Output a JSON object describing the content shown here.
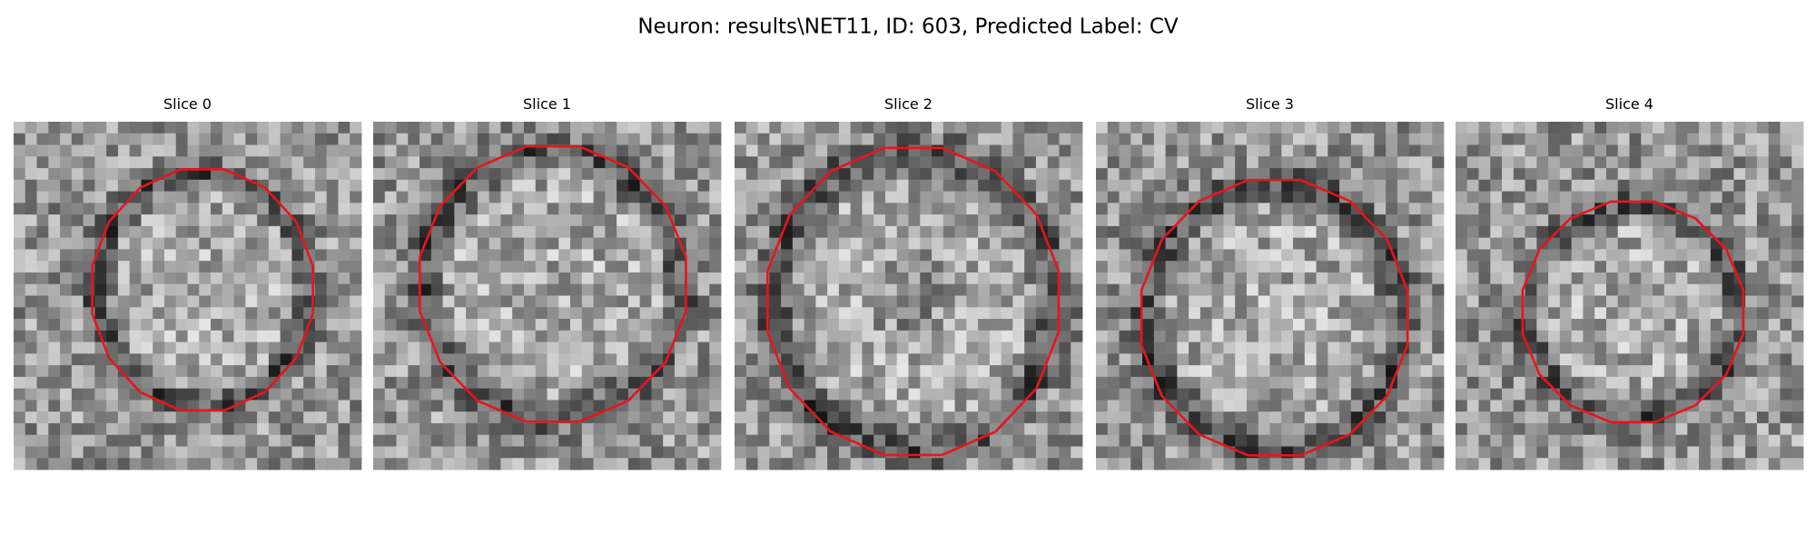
{
  "title": "Neuron: results\\NET11, ID: 603, Predicted Label: CV",
  "panels": [
    {
      "title": "Slice 0"
    },
    {
      "title": "Slice 1"
    },
    {
      "title": "Slice 2"
    },
    {
      "title": "Slice 3"
    },
    {
      "title": "Slice 4"
    }
  ]
}
